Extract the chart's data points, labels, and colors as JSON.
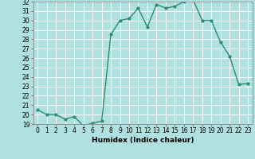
{
  "x": [
    0,
    1,
    2,
    3,
    4,
    5,
    6,
    7,
    8,
    9,
    10,
    11,
    12,
    13,
    14,
    15,
    16,
    17,
    18,
    19,
    20,
    21,
    22,
    23
  ],
  "y": [
    20.5,
    20.0,
    20.0,
    19.5,
    19.8,
    18.8,
    19.1,
    19.3,
    28.5,
    30.0,
    30.2,
    31.3,
    29.3,
    31.7,
    31.3,
    31.5,
    32.0,
    32.2,
    30.0,
    30.0,
    27.7,
    26.2,
    23.2,
    23.3
  ],
  "xlabel": "Humidex (Indice chaleur)",
  "line_color": "#2e8b74",
  "bg_color": "#b0e0e0",
  "grid_color": "#ffffff",
  "ylim": [
    19,
    32
  ],
  "xlim": [
    -0.5,
    23.5
  ],
  "yticks": [
    19,
    20,
    21,
    22,
    23,
    24,
    25,
    26,
    27,
    28,
    29,
    30,
    31,
    32
  ],
  "xticks": [
    0,
    1,
    2,
    3,
    4,
    5,
    6,
    7,
    8,
    9,
    10,
    11,
    12,
    13,
    14,
    15,
    16,
    17,
    18,
    19,
    20,
    21,
    22,
    23
  ],
  "tick_fontsize": 5.5,
  "xlabel_fontsize": 6.5
}
